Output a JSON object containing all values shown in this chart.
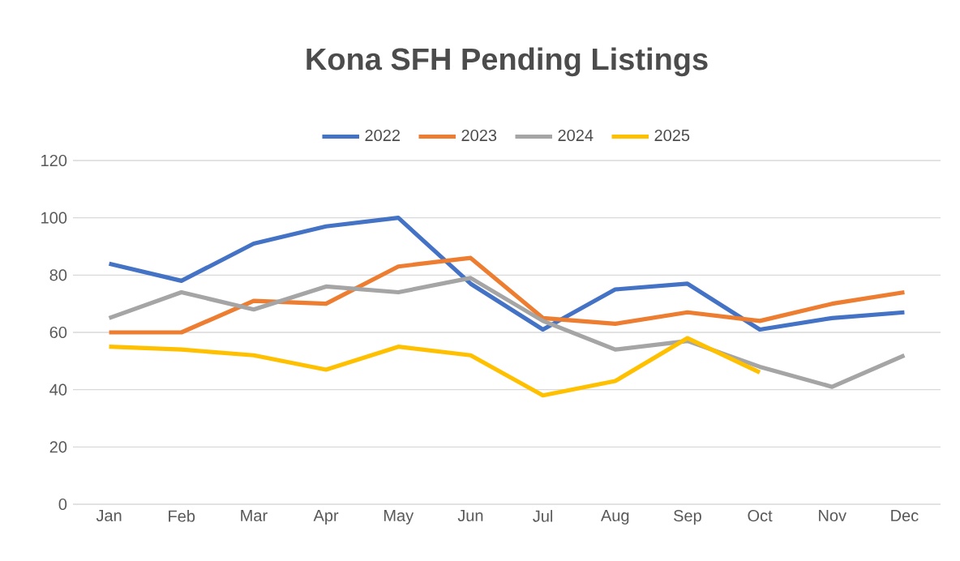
{
  "chart_data": {
    "type": "line",
    "title": "Kona SFH Pending Listings",
    "categories": [
      "Jan",
      "Feb",
      "Mar",
      "Apr",
      "May",
      "Jun",
      "Jul",
      "Aug",
      "Sep",
      "Oct",
      "Nov",
      "Dec"
    ],
    "series": [
      {
        "name": "2022",
        "color": "#4472c4",
        "values": [
          84,
          78,
          91,
          97,
          100,
          77,
          61,
          75,
          77,
          61,
          65,
          67
        ]
      },
      {
        "name": "2023",
        "color": "#ed7d31",
        "values": [
          60,
          60,
          71,
          70,
          83,
          86,
          65,
          63,
          67,
          64,
          70,
          74
        ]
      },
      {
        "name": "2024",
        "color": "#a5a5a5",
        "values": [
          65,
          74,
          68,
          76,
          74,
          79,
          64,
          54,
          57,
          48,
          41,
          52
        ]
      },
      {
        "name": "2025",
        "color": "#ffc000",
        "values": [
          55,
          54,
          52,
          47,
          55,
          52,
          38,
          43,
          58,
          46,
          null,
          null
        ]
      }
    ],
    "ylim": [
      0,
      120
    ],
    "yticks": [
      0,
      20,
      40,
      60,
      80,
      100,
      120
    ],
    "grid": "y",
    "legend": "top",
    "marker": "none",
    "line_style": "solid"
  }
}
